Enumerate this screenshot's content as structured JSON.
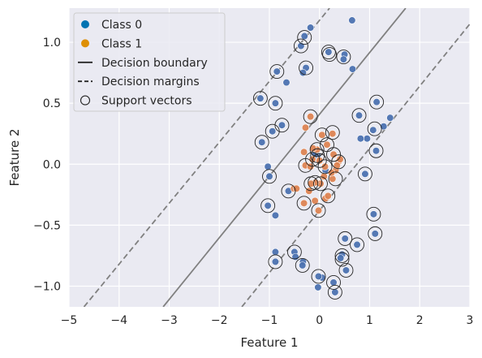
{
  "chart_data": {
    "type": "scatter",
    "xlabel": "Feature 1",
    "ylabel": "Feature 2",
    "xlim": [
      -5,
      3
    ],
    "ylim": [
      -1.17,
      1.28
    ],
    "xticks": [
      -5,
      -4,
      -3,
      -2,
      -1,
      0,
      1,
      2,
      3
    ],
    "xtick_labels": [
      "−5",
      "−4",
      "−3",
      "−2",
      "−1",
      "0",
      "1",
      "2",
      "3"
    ],
    "yticks": [
      -1.0,
      -0.5,
      0.0,
      0.5,
      1.0
    ],
    "ytick_labels": [
      "−1.0",
      "−0.5",
      "0.0",
      "0.5",
      "1.0"
    ],
    "grid": true,
    "background": "#eaeaf2",
    "legend_position": "top-left",
    "legend": [
      {
        "label": "Class 0",
        "kind": "dot",
        "color": "#0173b2"
      },
      {
        "label": "Class 1",
        "kind": "dot",
        "color": "#de8f05"
      },
      {
        "label": "Decision boundary",
        "kind": "solid-line",
        "color": "#262626"
      },
      {
        "label": "Decision margins",
        "kind": "dashed-line",
        "color": "#262626"
      },
      {
        "label": "Support vectors",
        "kind": "ring",
        "color": "#262626"
      }
    ],
    "colors": {
      "class0": "#4c72b0",
      "class1": "#dd8452",
      "boundary": "#808080"
    },
    "lines": [
      {
        "name": "decision-boundary",
        "style": "solid",
        "points": [
          [
            -3.12,
            -1.17
          ],
          [
            1.72,
            1.28
          ]
        ]
      },
      {
        "name": "margin-upper",
        "style": "dashed",
        "points": [
          [
            -4.7,
            -1.17
          ],
          [
            0.2,
            1.28
          ]
        ]
      },
      {
        "name": "margin-lower",
        "style": "dashed",
        "points": [
          [
            -1.55,
            -1.17
          ],
          [
            3.0,
            1.15
          ]
        ]
      }
    ],
    "series": [
      {
        "name": "Class 0",
        "points": [
          [
            0.18,
            0.92
          ],
          [
            0.5,
            0.9
          ],
          [
            0.48,
            0.86
          ],
          [
            0.65,
            1.18
          ],
          [
            0.66,
            0.78
          ],
          [
            -0.18,
            1.12
          ],
          [
            -0.37,
            0.97
          ],
          [
            -0.3,
            1.05
          ],
          [
            -0.85,
            0.76
          ],
          [
            -0.66,
            0.67
          ],
          [
            -0.88,
            0.5
          ],
          [
            -1.18,
            0.54
          ],
          [
            -0.27,
            0.79
          ],
          [
            -0.33,
            0.75
          ],
          [
            0.79,
            0.4
          ],
          [
            1.14,
            0.51
          ],
          [
            1.41,
            0.38
          ],
          [
            1.28,
            0.31
          ],
          [
            1.07,
            0.28
          ],
          [
            0.95,
            0.21
          ],
          [
            0.82,
            0.21
          ],
          [
            1.13,
            0.11
          ],
          [
            -0.94,
            0.27
          ],
          [
            -0.75,
            0.32
          ],
          [
            -1.15,
            0.18
          ],
          [
            -1.03,
            -0.02
          ],
          [
            -1.0,
            -0.1
          ],
          [
            -0.62,
            -0.22
          ],
          [
            -1.03,
            -0.34
          ],
          [
            -0.88,
            -0.42
          ],
          [
            0.91,
            -0.08
          ],
          [
            1.08,
            -0.41
          ],
          [
            1.11,
            -0.57
          ],
          [
            0.51,
            -0.61
          ],
          [
            0.75,
            -0.66
          ],
          [
            0.45,
            -0.74
          ],
          [
            0.42,
            -0.77
          ],
          [
            0.53,
            -0.87
          ],
          [
            0.28,
            -0.97
          ],
          [
            0.31,
            -1.05
          ],
          [
            0.05,
            -0.93
          ],
          [
            -0.03,
            -1.01
          ],
          [
            -0.02,
            -0.92
          ],
          [
            -0.88,
            -0.72
          ],
          [
            -0.88,
            -0.8
          ],
          [
            -0.5,
            -0.72
          ],
          [
            -0.48,
            -0.76
          ],
          [
            -0.33,
            -0.8
          ],
          [
            -0.34,
            -0.83
          ],
          [
            -0.04,
            0.07
          ],
          [
            0.12,
            -0.05
          ],
          [
            -0.09,
            0.08
          ]
        ]
      },
      {
        "name": "Class 1",
        "points": [
          [
            -0.18,
            0.39
          ],
          [
            -0.28,
            0.3
          ],
          [
            -0.31,
            0.1
          ],
          [
            -0.28,
            -0.01
          ],
          [
            -0.14,
            0.04
          ],
          [
            -0.05,
            0.12
          ],
          [
            0.05,
            0.24
          ],
          [
            0.15,
            0.16
          ],
          [
            0.26,
            0.25
          ],
          [
            0.28,
            0.08
          ],
          [
            0.38,
            0.02
          ],
          [
            0.41,
            0.04
          ],
          [
            0.32,
            -0.05
          ],
          [
            0.26,
            -0.12
          ],
          [
            0.09,
            -0.1
          ],
          [
            0.11,
            -0.02
          ],
          [
            0.0,
            0.03
          ],
          [
            0.02,
            -0.16
          ],
          [
            -0.08,
            -0.15
          ],
          [
            -0.17,
            -0.16
          ],
          [
            -0.21,
            -0.22
          ],
          [
            -0.09,
            -0.3
          ],
          [
            -0.31,
            -0.32
          ],
          [
            -0.51,
            -0.2
          ],
          [
            -0.46,
            -0.2
          ],
          [
            0.12,
            -0.28
          ],
          [
            0.17,
            -0.26
          ],
          [
            -0.02,
            -0.38
          ],
          [
            -0.18,
            -0.02
          ],
          [
            -0.13,
            0.13
          ],
          [
            0.24,
            -0.07
          ],
          [
            0.35,
            -0.01
          ]
        ]
      }
    ],
    "support_vectors": [
      [
        0.18,
        0.92
      ],
      [
        0.2,
        0.9
      ],
      [
        0.48,
        0.88
      ],
      [
        -0.37,
        0.97
      ],
      [
        -0.3,
        1.04
      ],
      [
        -0.85,
        0.76
      ],
      [
        -0.27,
        0.79
      ],
      [
        -0.88,
        0.5
      ],
      [
        -1.18,
        0.54
      ],
      [
        -0.18,
        0.39
      ],
      [
        0.05,
        0.24
      ],
      [
        0.26,
        0.26
      ],
      [
        0.79,
        0.4
      ],
      [
        1.14,
        0.51
      ],
      [
        1.1,
        0.29
      ],
      [
        1.13,
        0.11
      ],
      [
        -0.94,
        0.27
      ],
      [
        -0.75,
        0.32
      ],
      [
        -1.15,
        0.18
      ],
      [
        -0.05,
        0.12
      ],
      [
        0.15,
        0.16
      ],
      [
        -0.28,
        -0.01
      ],
      [
        -0.14,
        0.04
      ],
      [
        0.0,
        0.03
      ],
      [
        0.11,
        -0.02
      ],
      [
        0.28,
        0.08
      ],
      [
        0.38,
        0.02
      ],
      [
        -1.0,
        -0.1
      ],
      [
        -0.62,
        -0.22
      ],
      [
        -1.03,
        -0.34
      ],
      [
        0.91,
        -0.08
      ],
      [
        1.08,
        -0.41
      ],
      [
        1.11,
        -0.57
      ],
      [
        -0.09,
        -0.15
      ],
      [
        -0.17,
        -0.16
      ],
      [
        0.02,
        -0.16
      ],
      [
        0.32,
        -0.12
      ],
      [
        -0.31,
        -0.32
      ],
      [
        -0.02,
        -0.38
      ],
      [
        0.17,
        -0.26
      ],
      [
        0.51,
        -0.61
      ],
      [
        0.75,
        -0.66
      ],
      [
        0.45,
        -0.75
      ],
      [
        0.45,
        -0.78
      ],
      [
        0.53,
        -0.87
      ],
      [
        0.28,
        -0.97
      ],
      [
        0.31,
        -1.05
      ],
      [
        -0.02,
        -0.92
      ],
      [
        -0.88,
        -0.8
      ],
      [
        -0.5,
        -0.72
      ],
      [
        -0.34,
        -0.83
      ],
      [
        -0.04,
        0.07
      ]
    ]
  }
}
